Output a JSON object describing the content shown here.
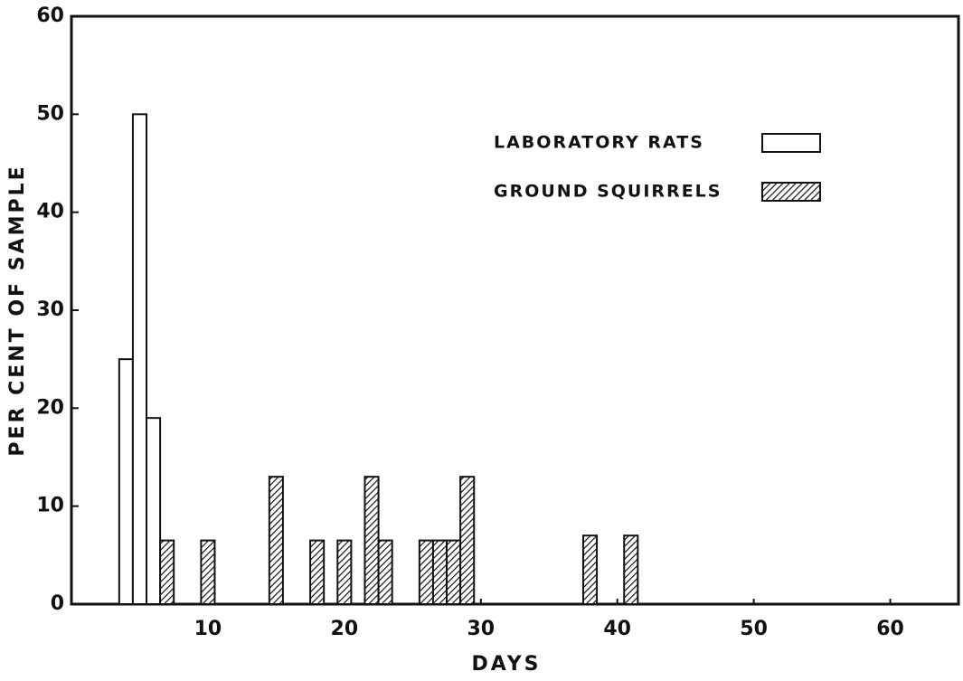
{
  "chart_data": {
    "type": "bar",
    "x_label": "DAYS",
    "y_label": "PER CENT OF SAMPLE",
    "series": [
      {
        "name": "LABORATORY RATS",
        "color": "#ffffff",
        "x": [
          4,
          5,
          6
        ],
        "values": [
          25,
          50,
          19
        ]
      },
      {
        "name": "GROUND SQUIRRELS",
        "color": "hatched",
        "x": [
          7,
          10,
          15,
          18,
          20,
          22,
          23,
          26,
          27,
          28,
          29,
          38,
          41
        ],
        "values": [
          6.5,
          6.5,
          13,
          6.5,
          6.5,
          13,
          6.5,
          6.5,
          6.5,
          6.5,
          13,
          7,
          7
        ]
      }
    ],
    "xlim": [
      0,
      65
    ],
    "xticks": [
      10,
      20,
      30,
      40,
      50,
      60
    ],
    "ylim": [
      0,
      60
    ],
    "yticks": [
      0,
      10,
      20,
      30,
      40,
      50,
      60
    ],
    "grid": false,
    "legend": "upper right"
  }
}
